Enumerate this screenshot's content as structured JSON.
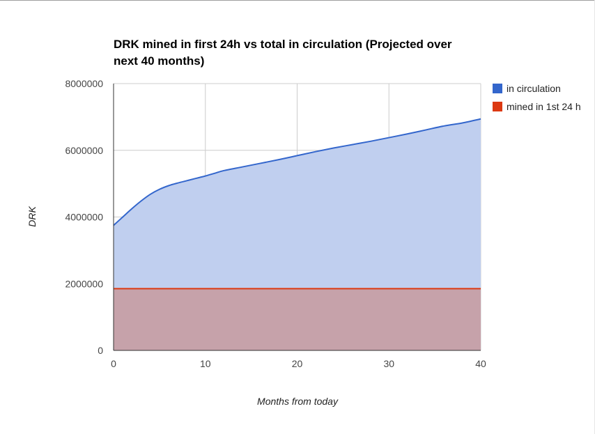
{
  "chart_data": {
    "type": "area",
    "title_lines": [
      "DRK mined in first 24h vs total in circulation (Projected over",
      "next 40 months)"
    ],
    "xlabel": "Months from today",
    "ylabel": "DRK",
    "xlim": [
      0,
      40
    ],
    "ylim": [
      0,
      8000000
    ],
    "x_ticks": [
      "0",
      "10",
      "20",
      "30",
      "40"
    ],
    "y_ticks": [
      "0",
      "2000000",
      "4000000",
      "6000000",
      "8000000"
    ],
    "grid": true,
    "legend_position": "right",
    "series": [
      {
        "name": "in circulation",
        "color": "#3366cc",
        "fill": "#c0cfef",
        "x": [
          0,
          1,
          2,
          3,
          4,
          5,
          6,
          7,
          8,
          9,
          10,
          11,
          12,
          14,
          16,
          18,
          20,
          22,
          24,
          26,
          28,
          30,
          32,
          34,
          36,
          38,
          40
        ],
        "y": [
          3750000,
          4000000,
          4250000,
          4480000,
          4680000,
          4830000,
          4940000,
          5020000,
          5090000,
          5160000,
          5230000,
          5310000,
          5390000,
          5500000,
          5610000,
          5720000,
          5840000,
          5960000,
          6070000,
          6170000,
          6270000,
          6380000,
          6490000,
          6610000,
          6730000,
          6820000,
          6940000
        ]
      },
      {
        "name": "mined in 1st 24 h",
        "color": "#dc3912",
        "fill": "#c6a2aa",
        "x": [
          0,
          40
        ],
        "y": [
          1850000,
          1850000
        ]
      }
    ]
  }
}
